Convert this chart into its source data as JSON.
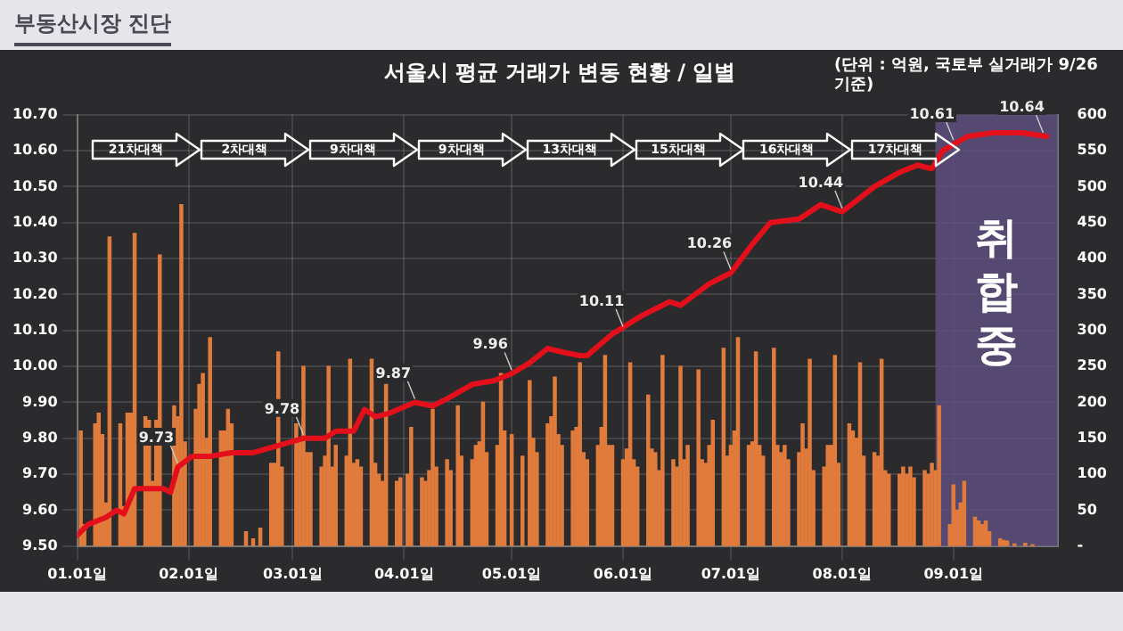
{
  "chart_data": {
    "type": "bar",
    "title": "서울시 평균 거래가 변동 현황 / 일별",
    "xlim": [
      "--01-01",
      "--09-30"
    ],
    "xticks": [
      {
        "value": "--01-01",
        "label": "01.01일"
      },
      {
        "value": "--02-01",
        "label": "02.01일"
      },
      {
        "value": "--03-01",
        "label": "03.01일"
      },
      {
        "value": "--04-01",
        "label": "04.01일"
      },
      {
        "value": "--05-01",
        "label": "05.01일"
      },
      {
        "value": "--06-01",
        "label": "06.01일"
      },
      {
        "value": "--07-01",
        "label": "07.01일"
      },
      {
        "value": "--08-01",
        "label": "08.01일"
      },
      {
        "value": "--09-01",
        "label": "09.01일"
      }
    ],
    "ylim": [
      9.5,
      10.7
    ],
    "yticks": [
      {
        "value": 9.5,
        "label": "9.50"
      },
      {
        "value": 9.6,
        "label": "9.60"
      },
      {
        "value": 9.7,
        "label": "9.70"
      },
      {
        "value": 9.8,
        "label": "9.80"
      },
      {
        "value": 9.9,
        "label": "9.90"
      },
      {
        "value": 10,
        "label": "10.00"
      },
      {
        "value": 10.1,
        "label": "10.10"
      },
      {
        "value": 10.2,
        "label": "10.20"
      },
      {
        "value": 10.3,
        "label": "10.30"
      },
      {
        "value": 10.4,
        "label": "10.40"
      },
      {
        "value": 10.5,
        "label": "10.50"
      },
      {
        "value": 10.6,
        "label": "10.60"
      },
      {
        "value": 10.7,
        "label": "10.70"
      }
    ],
    "y2lim": [
      0,
      600
    ],
    "y2ticks": [
      {
        "value": 0,
        "label": "-"
      },
      50,
      100,
      150,
      200,
      250,
      300,
      350,
      400,
      450,
      500,
      550,
      600
    ],
    "grid": true,
    "legend": false,
    "series": [
      {
        "axis": "y2",
        "color": "#e07b3c",
        "x": [
          "--01-02",
          "--01-03",
          "--01-06",
          "--01-07",
          "--01-08",
          "--01-09",
          "--01-10",
          "--01-13",
          "--01-14",
          "--01-15",
          "--01-16",
          "--01-17",
          "--01-20",
          "--01-21",
          "--01-22",
          "--01-23",
          "--01-24",
          "--01-28",
          "--01-29",
          "--01-30",
          "--01-31",
          "--02-03",
          "--02-04",
          "--02-05",
          "--02-06",
          "--02-07",
          "--02-10",
          "--02-11",
          "--02-12",
          "--02-13",
          "--02-17",
          "--02-19",
          "--02-21",
          "--02-24",
          "--02-25",
          "--02-26",
          "--02-27",
          "--03-02",
          "--03-03",
          "--03-04",
          "--03-05",
          "--03-06",
          "--03-09",
          "--03-10",
          "--03-11",
          "--03-12",
          "--03-13",
          "--03-16",
          "--03-17",
          "--03-18",
          "--03-19",
          "--03-20",
          "--03-23",
          "--03-24",
          "--03-25",
          "--03-26",
          "--03-27",
          "--03-30",
          "--03-31",
          "--04-02",
          "--04-03",
          "--04-06",
          "--04-07",
          "--04-08",
          "--04-09",
          "--04-10",
          "--04-13",
          "--04-14",
          "--04-16",
          "--04-17",
          "--04-20",
          "--04-21",
          "--04-22",
          "--04-23",
          "--04-24",
          "--04-27",
          "--04-28",
          "--04-29",
          "--05-01",
          "--05-04",
          "--05-06",
          "--05-07",
          "--05-08",
          "--05-11",
          "--05-12",
          "--05-13",
          "--05-14",
          "--05-15",
          "--05-18",
          "--05-19",
          "--05-20",
          "--05-21",
          "--05-22",
          "--05-25",
          "--05-26",
          "--05-27",
          "--05-28",
          "--05-29",
          "--06-01",
          "--06-02",
          "--06-03",
          "--06-04",
          "--06-05",
          "--06-08",
          "--06-09",
          "--06-10",
          "--06-11",
          "--06-12",
          "--06-15",
          "--06-16",
          "--06-17",
          "--06-18",
          "--06-19",
          "--06-22",
          "--06-23",
          "--06-24",
          "--06-25",
          "--06-26",
          "--06-29",
          "--06-30",
          "--07-01",
          "--07-02",
          "--07-03",
          "--07-06",
          "--07-07",
          "--07-08",
          "--07-09",
          "--07-10",
          "--07-13",
          "--07-14",
          "--07-15",
          "--07-16",
          "--07-17",
          "--07-20",
          "--07-21",
          "--07-22",
          "--07-23",
          "--07-24",
          "--07-27",
          "--07-28",
          "--07-29",
          "--07-30",
          "--07-31",
          "--08-03",
          "--08-04",
          "--08-05",
          "--08-06",
          "--08-07",
          "--08-10",
          "--08-11",
          "--08-12",
          "--08-13",
          "--08-14",
          "--08-17",
          "--08-18",
          "--08-19",
          "--08-20",
          "--08-21",
          "--08-24",
          "--08-25",
          "--08-26",
          "--08-27",
          "--08-28",
          "--08-31",
          "--09-01",
          "--09-02",
          "--09-03",
          "--09-04",
          "--09-07",
          "--09-08",
          "--09-09",
          "--09-10",
          "--09-11",
          "--09-14",
          "--09-15",
          "--09-16",
          "--09-18",
          "--09-21",
          "--09-23"
        ],
        "values": [
          160,
          30,
          170,
          185,
          155,
          60,
          430,
          170,
          55,
          185,
          185,
          435,
          180,
          175,
          90,
          175,
          405,
          195,
          180,
          475,
          145,
          190,
          225,
          240,
          150,
          290,
          160,
          160,
          190,
          170,
          20,
          10,
          25,
          115,
          115,
          270,
          110,
          170,
          150,
          250,
          130,
          130,
          110,
          125,
          250,
          110,
          140,
          125,
          260,
          115,
          120,
          110,
          260,
          115,
          100,
          90,
          225,
          90,
          95,
          100,
          165,
          95,
          90,
          105,
          190,
          110,
          120,
          105,
          195,
          125,
          120,
          140,
          145,
          200,
          130,
          140,
          240,
          160,
          155,
          125,
          230,
          150,
          130,
          170,
          180,
          235,
          155,
          140,
          160,
          165,
          255,
          130,
          120,
          140,
          165,
          265,
          140,
          140,
          120,
          135,
          255,
          120,
          110,
          210,
          135,
          130,
          105,
          265,
          120,
          110,
          250,
          120,
          140,
          245,
          120,
          115,
          140,
          175,
          275,
          125,
          140,
          160,
          290,
          140,
          145,
          270,
          140,
          125,
          275,
          140,
          130,
          140,
          120,
          130,
          170,
          135,
          260,
          105,
          110,
          140,
          140,
          265,
          115,
          170,
          160,
          150,
          255,
          125,
          130,
          125,
          260,
          105,
          100,
          100,
          110,
          100,
          110,
          95,
          105,
          100,
          115,
          105,
          195,
          30,
          85,
          50,
          60,
          90,
          40,
          35,
          30,
          35,
          20,
          10,
          8,
          7,
          3,
          4,
          2
        ]
      },
      {
        "type": "line",
        "axis": "y",
        "color": "#e3101c",
        "x": [
          "--01-01",
          "--01-04",
          "--01-09",
          "--01-12",
          "--01-14",
          "--01-17",
          "--01-25",
          "--01-27",
          "--01-29",
          "--02-02",
          "--02-07",
          "--02-13",
          "--02-19",
          "--02-26",
          "--03-04",
          "--03-10",
          "--03-13",
          "--03-18",
          "--03-21",
          "--03-24",
          "--03-28",
          "--04-04",
          "--04-09",
          "--04-13",
          "--04-20",
          "--04-26",
          "--05-01",
          "--05-06",
          "--05-11",
          "--05-15",
          "--05-20",
          "--05-22",
          "--05-29",
          "--06-06",
          "--06-14",
          "--06-17",
          "--06-25",
          "--07-01",
          "--07-07",
          "--07-12",
          "--07-20",
          "--07-26",
          "--08-01",
          "--08-10",
          "--08-17",
          "--08-22",
          "--08-26",
          "--08-29",
          "--09-05",
          "--09-12",
          "--09-20",
          "--09-27"
        ],
        "values": [
          9.53,
          9.56,
          9.58,
          9.6,
          9.59,
          9.66,
          9.66,
          9.65,
          9.72,
          9.75,
          9.75,
          9.76,
          9.76,
          9.78,
          9.8,
          9.8,
          9.82,
          9.82,
          9.88,
          9.86,
          9.87,
          9.9,
          9.89,
          9.91,
          9.95,
          9.96,
          9.98,
          10.01,
          10.05,
          10.04,
          10.03,
          10.03,
          10.09,
          10.14,
          10.18,
          10.17,
          10.23,
          10.26,
          10.34,
          10.4,
          10.41,
          10.45,
          10.43,
          10.5,
          10.54,
          10.56,
          10.55,
          10.6,
          10.64,
          10.65,
          10.65,
          10.64
        ]
      }
    ],
    "bands": [
      {
        "axis": "x",
        "from": "--08-27",
        "to": "--09-30",
        "label": "취합중",
        "color": "#5e4f7e"
      }
    ],
    "annotations": [
      "부동산시장 진단",
      "(단위 : 억원, 국토부 실거래가 9/26 기준)",
      "21차대책",
      "2차대책",
      "9차대책",
      "9차대책",
      "13차대책",
      "15차대책",
      "16차대책",
      "17차대책",
      {
        "text": "9.73",
        "x": "--01-29",
        "y": 9.72
      },
      {
        "text": "9.78",
        "x": "--03-04",
        "y": 9.8
      },
      {
        "text": "9.87",
        "x": "--04-04",
        "y": 9.9
      },
      {
        "text": "9.96",
        "x": "--05-01",
        "y": 9.98
      },
      {
        "text": "10.11",
        "x": "--06-01",
        "y": 10.1
      },
      {
        "text": "10.26",
        "x": "--07-01",
        "y": 10.26
      },
      {
        "text": "10.44",
        "x": "--08-01",
        "y": 10.43
      },
      {
        "text": "10.61",
        "x": "--09-01",
        "y": 10.62
      },
      {
        "text": "10.64",
        "x": "--09-26",
        "y": 10.64
      }
    ]
  }
}
